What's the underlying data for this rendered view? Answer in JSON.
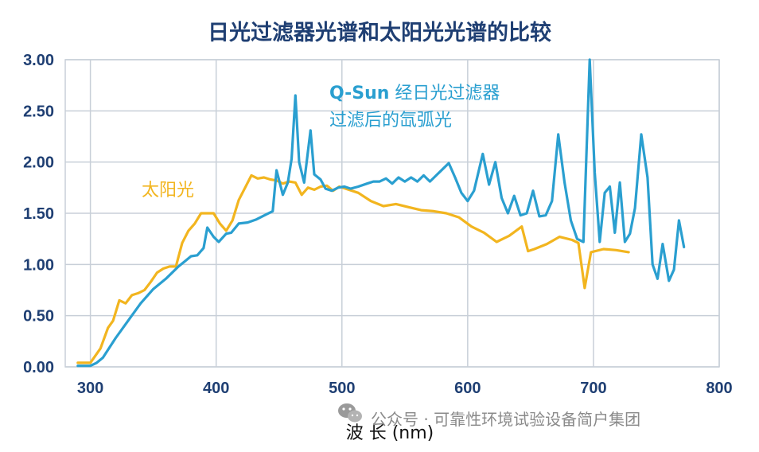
{
  "chart_data": {
    "type": "line",
    "title": "日光过滤器光谱和太阳光光谱的比较",
    "xlabel": "波   长 (nm)",
    "ylabel": "",
    "xlim": [
      280,
      800
    ],
    "ylim": [
      0,
      3.0
    ],
    "x_ticks": [
      300,
      400,
      500,
      600,
      700,
      800
    ],
    "x_tick_labels": [
      "300",
      "400",
      "500",
      "600",
      "700",
      "800"
    ],
    "y_ticks": [
      0,
      0.5,
      1.0,
      1.5,
      2.0,
      2.5,
      3.0
    ],
    "y_tick_labels": [
      "0.00",
      "0.50",
      "1.00",
      "1.50",
      "2.00",
      "2.50",
      "3.00"
    ],
    "grid": true,
    "series": [
      {
        "key": "xenon",
        "color": "#2a9fd0",
        "points": [
          [
            290,
            0.01
          ],
          [
            300,
            0.01
          ],
          [
            305,
            0.04
          ],
          [
            310,
            0.09
          ],
          [
            320,
            0.28
          ],
          [
            330,
            0.45
          ],
          [
            340,
            0.62
          ],
          [
            350,
            0.76
          ],
          [
            360,
            0.86
          ],
          [
            370,
            0.98
          ],
          [
            375,
            1.03
          ],
          [
            380,
            1.08
          ],
          [
            385,
            1.09
          ],
          [
            390,
            1.16
          ],
          [
            393,
            1.36
          ],
          [
            398,
            1.27
          ],
          [
            402,
            1.22
          ],
          [
            408,
            1.3
          ],
          [
            412,
            1.31
          ],
          [
            418,
            1.4
          ],
          [
            425,
            1.41
          ],
          [
            432,
            1.44
          ],
          [
            440,
            1.49
          ],
          [
            445,
            1.52
          ],
          [
            448,
            1.92
          ],
          [
            453,
            1.68
          ],
          [
            457,
            1.8
          ],
          [
            460,
            2.03
          ],
          [
            463,
            2.65
          ],
          [
            466,
            2.0
          ],
          [
            470,
            1.8
          ],
          [
            475,
            2.31
          ],
          [
            478,
            1.88
          ],
          [
            483,
            1.83
          ],
          [
            487,
            1.74
          ],
          [
            492,
            1.72
          ],
          [
            497,
            1.75
          ],
          [
            502,
            1.76
          ],
          [
            507,
            1.74
          ],
          [
            513,
            1.76
          ],
          [
            520,
            1.79
          ],
          [
            525,
            1.81
          ],
          [
            530,
            1.81
          ],
          [
            535,
            1.84
          ],
          [
            540,
            1.79
          ],
          [
            545,
            1.85
          ],
          [
            550,
            1.81
          ],
          [
            555,
            1.85
          ],
          [
            560,
            1.81
          ],
          [
            565,
            1.87
          ],
          [
            570,
            1.81
          ],
          [
            575,
            1.87
          ],
          [
            580,
            1.93
          ],
          [
            585,
            1.99
          ],
          [
            590,
            1.85
          ],
          [
            595,
            1.7
          ],
          [
            600,
            1.62
          ],
          [
            605,
            1.72
          ],
          [
            612,
            2.08
          ],
          [
            617,
            1.78
          ],
          [
            622,
            2.0
          ],
          [
            627,
            1.65
          ],
          [
            632,
            1.5
          ],
          [
            637,
            1.67
          ],
          [
            642,
            1.48
          ],
          [
            647,
            1.5
          ],
          [
            652,
            1.72
          ],
          [
            657,
            1.47
          ],
          [
            662,
            1.48
          ],
          [
            667,
            1.62
          ],
          [
            672,
            2.27
          ],
          [
            677,
            1.8
          ],
          [
            682,
            1.43
          ],
          [
            687,
            1.25
          ],
          [
            692,
            1.22
          ],
          [
            697,
            3.0
          ],
          [
            701,
            1.9
          ],
          [
            705,
            1.22
          ],
          [
            709,
            1.7
          ],
          [
            713,
            1.76
          ],
          [
            717,
            1.31
          ],
          [
            721,
            1.8
          ],
          [
            725,
            1.22
          ],
          [
            729,
            1.3
          ],
          [
            733,
            1.55
          ],
          [
            738,
            2.27
          ],
          [
            743,
            1.85
          ],
          [
            747,
            1.0
          ],
          [
            751,
            0.86
          ],
          [
            755,
            1.2
          ],
          [
            760,
            0.84
          ],
          [
            764,
            0.95
          ],
          [
            768,
            1.43
          ],
          [
            772,
            1.17
          ]
        ]
      },
      {
        "key": "sun",
        "color": "#f2b51f",
        "points": [
          [
            290,
            0.04
          ],
          [
            300,
            0.04
          ],
          [
            308,
            0.18
          ],
          [
            314,
            0.38
          ],
          [
            318,
            0.45
          ],
          [
            323,
            0.65
          ],
          [
            328,
            0.62
          ],
          [
            333,
            0.7
          ],
          [
            338,
            0.72
          ],
          [
            343,
            0.75
          ],
          [
            348,
            0.83
          ],
          [
            353,
            0.92
          ],
          [
            358,
            0.96
          ],
          [
            363,
            0.98
          ],
          [
            368,
            0.98
          ],
          [
            373,
            1.21
          ],
          [
            378,
            1.33
          ],
          [
            383,
            1.4
          ],
          [
            388,
            1.5
          ],
          [
            393,
            1.5
          ],
          [
            398,
            1.5
          ],
          [
            403,
            1.4
          ],
          [
            408,
            1.33
          ],
          [
            413,
            1.43
          ],
          [
            418,
            1.63
          ],
          [
            423,
            1.75
          ],
          [
            428,
            1.87
          ],
          [
            433,
            1.84
          ],
          [
            438,
            1.85
          ],
          [
            443,
            1.83
          ],
          [
            448,
            1.82
          ],
          [
            453,
            1.79
          ],
          [
            458,
            1.81
          ],
          [
            463,
            1.8
          ],
          [
            468,
            1.68
          ],
          [
            473,
            1.75
          ],
          [
            478,
            1.73
          ],
          [
            483,
            1.76
          ],
          [
            488,
            1.77
          ],
          [
            493,
            1.72
          ],
          [
            498,
            1.76
          ],
          [
            503,
            1.74
          ],
          [
            513,
            1.7
          ],
          [
            523,
            1.62
          ],
          [
            533,
            1.57
          ],
          [
            543,
            1.59
          ],
          [
            553,
            1.56
          ],
          [
            563,
            1.53
          ],
          [
            573,
            1.52
          ],
          [
            583,
            1.5
          ],
          [
            593,
            1.46
          ],
          [
            603,
            1.37
          ],
          [
            613,
            1.31
          ],
          [
            623,
            1.22
          ],
          [
            633,
            1.28
          ],
          [
            643,
            1.37
          ],
          [
            648,
            1.13
          ],
          [
            653,
            1.15
          ],
          [
            663,
            1.2
          ],
          [
            673,
            1.27
          ],
          [
            683,
            1.24
          ],
          [
            688,
            1.21
          ],
          [
            693,
            0.77
          ],
          [
            698,
            1.12
          ],
          [
            708,
            1.15
          ],
          [
            718,
            1.14
          ],
          [
            728,
            1.12
          ]
        ]
      }
    ],
    "annotations": {
      "xenon_line1_prefix": "Q-Sun",
      "xenon_line1_suffix": " 经日光过滤器",
      "xenon_line2": "过滤后的氙弧光",
      "sun_label": "太阳光"
    }
  },
  "watermark": {
    "text": "公众号 · 可靠性环境试验设备简户集团"
  }
}
